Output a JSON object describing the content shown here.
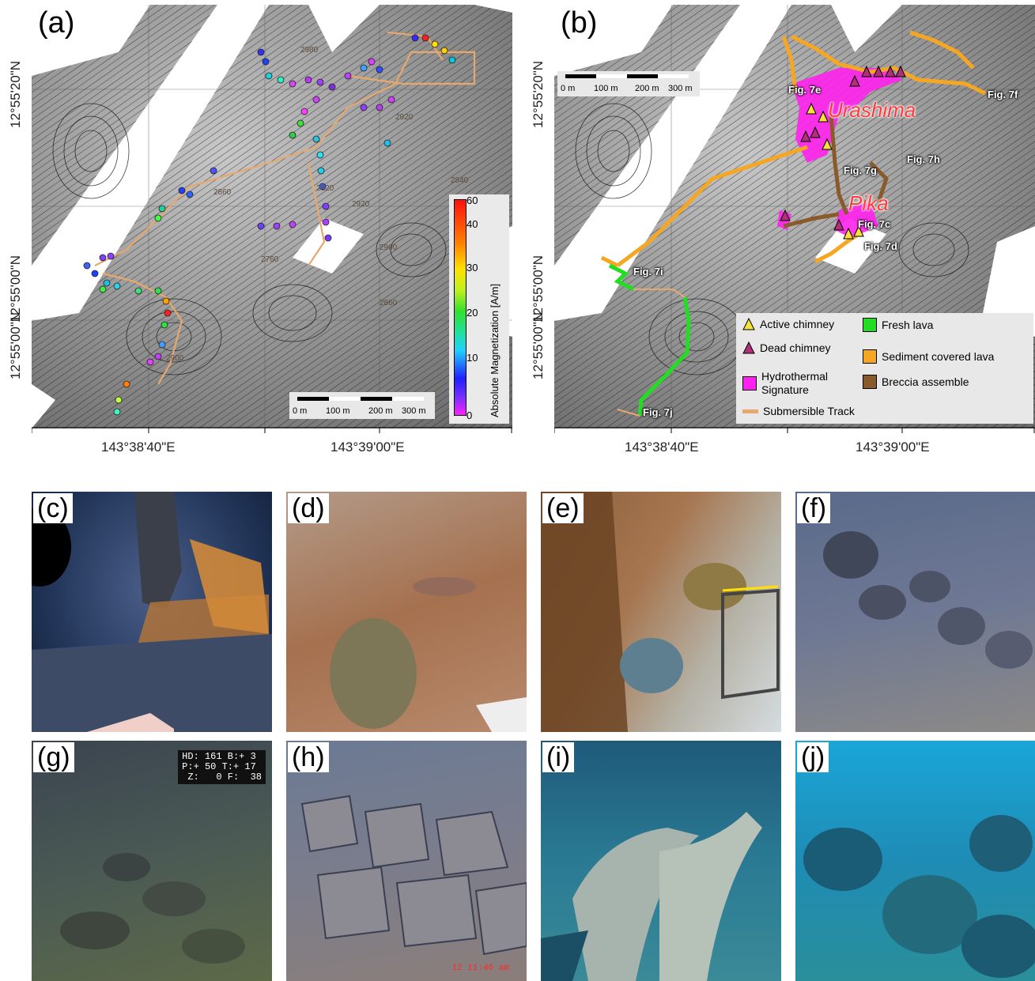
{
  "panel_a": {
    "label": "(a)",
    "lat_top": "12°55'20\"N",
    "lat_bottom": "12°55'00\"N",
    "lat_bottom2": "12°55'00\"N",
    "lon_left": "143°38'40\"E",
    "lon_right": "143°39'00\"E",
    "scale": {
      "t0": "0 m",
      "t1": "100 m",
      "t2": "200 m",
      "t3": "300 m"
    },
    "colorbar": {
      "title": "Absolute Magnetization [A/m]",
      "ticks": [
        "60",
        "40",
        "30",
        "20",
        "10",
        "0"
      ]
    },
    "contour_labels": [
      "2980",
      "2920",
      "2840",
      "2860",
      "2900",
      "2920",
      "2760",
      "2820",
      "2860",
      "2900"
    ]
  },
  "panel_b": {
    "label": "(b)",
    "lat_top": "12°55'20\"N",
    "lat_mid": "12°55'00\"N",
    "lat_bottom": "12°55'00\"N",
    "lon_left": "143°38'40\"E",
    "lon_right": "143°39'00\"E",
    "scale": {
      "t0": "0 m",
      "t1": "100 m",
      "t2": "200 m",
      "t3": "300 m"
    },
    "sites": {
      "urashima": "Urashima",
      "pika": "Pika"
    },
    "figs": {
      "e": "Fig. 7e",
      "f": "Fig. 7f",
      "g": "Fig. 7g",
      "h": "Fig. 7h",
      "c": "Fig. 7c",
      "d": "Fig. 7d",
      "i": "Fig. 7i",
      "j": "Fig. 7j"
    },
    "legend": {
      "active": "Active chimney",
      "dead": "Dead chimney",
      "hydro": "Hydrothermal\nSignature",
      "track": "Submersible Track",
      "fresh": "Fresh lava",
      "sediment": "Sediment covered lava",
      "breccia": "Breccia assemble"
    },
    "colors": {
      "active": "#f5e23a",
      "dead": "#b0307a",
      "hydro": "#ff22ee",
      "track": "#e8a868",
      "fresh": "#22dd22",
      "sediment": "#f5a623",
      "breccia": "#8b5a2b"
    }
  },
  "photos": [
    {
      "label": "(c)"
    },
    {
      "label": "(d)"
    },
    {
      "label": "(e)"
    },
    {
      "label": "(f)"
    },
    {
      "label": "(g)",
      "hud": "HD: 161 B:+ 3\nP:+ 50 T:+ 17\n Z:   0 F:  38"
    },
    {
      "label": "(h)",
      "timestamp": "12 11:46 am"
    },
    {
      "label": "(i)"
    },
    {
      "label": "(j)"
    }
  ]
}
